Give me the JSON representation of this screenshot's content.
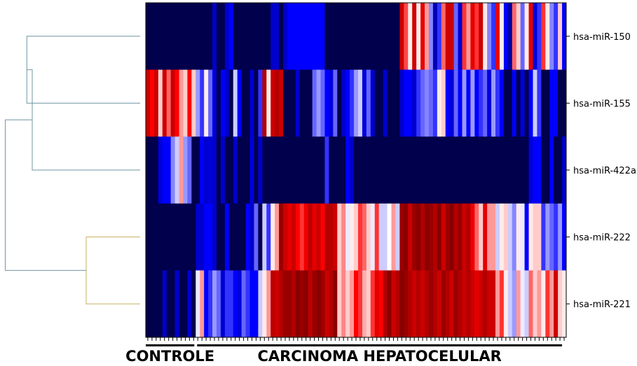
{
  "chart_data": {
    "type": "heatmap",
    "title": "",
    "colormap": "seismic",
    "colors": {
      "low": "#00004c",
      "mid_low": "#0000ff",
      "mid": "#ffffff",
      "mid_high": "#ff0000",
      "high": "#7f0000",
      "dendro_top": "#7096a6",
      "dendro_bottom": "#c8b060"
    },
    "rows": [
      "hsa-miR-150",
      "hsa-miR-155",
      "hsa-miR-422a",
      "hsa-miR-222",
      "hsa-miR-221"
    ],
    "groups": [
      {
        "label": "CONTROLE",
        "count": 12
      },
      {
        "label": "CARCINOMA HEPATOCELULAR",
        "count": 88
      }
    ],
    "values": [
      [
        0.0,
        0.0,
        0.0,
        0.0,
        0.0,
        0.0,
        0.0,
        0.0,
        0.0,
        0.0,
        0.0,
        0.0,
        0.0,
        0.0,
        0.0,
        0.0,
        0.18,
        0.0,
        0.0,
        0.18,
        0.25,
        0.0,
        0.0,
        0.0,
        0.0,
        0.0,
        0.0,
        0.0,
        0.0,
        0.0,
        0.18,
        0.18,
        0.0,
        0.18,
        0.25,
        0.25,
        0.25,
        0.25,
        0.25,
        0.25,
        0.25,
        0.25,
        0.25,
        0.0,
        0.0,
        0.0,
        0.0,
        0.0,
        0.0,
        0.0,
        0.0,
        0.0,
        0.0,
        0.0,
        0.0,
        0.0,
        0.0,
        0.0,
        0.0,
        0.0,
        0.0,
        0.85,
        0.68,
        0.52,
        0.85,
        0.52,
        0.8,
        0.6,
        0.38,
        0.15,
        0.3,
        0.65,
        0.85,
        0.85,
        0.35,
        0.18,
        0.7,
        0.6,
        0.8,
        0.7,
        0.85,
        0.52,
        0.38,
        0.3,
        0.8,
        0.52,
        0.25,
        0.12,
        0.65,
        0.55,
        0.35,
        0.52,
        0.8,
        0.2,
        0.3,
        0.7,
        0.52,
        0.38,
        0.3,
        0.55,
        0.25
      ],
      [
        0.85,
        0.75,
        0.85,
        0.55,
        0.85,
        0.65,
        0.85,
        0.75,
        0.6,
        0.55,
        0.75,
        0.55,
        0.4,
        0.3,
        0.52,
        0.35,
        0.2,
        0.0,
        0.25,
        0.18,
        0.0,
        0.45,
        0.25,
        0.0,
        0.0,
        0.18,
        0.0,
        0.3,
        0.9,
        0.52,
        0.85,
        0.9,
        0.85,
        0.0,
        0.0,
        0.0,
        0.18,
        0.0,
        0.0,
        0.0,
        0.35,
        0.4,
        0.35,
        0.25,
        0.2,
        0.35,
        0.0,
        0.18,
        0.25,
        0.3,
        0.4,
        0.45,
        0.2,
        0.35,
        0.18,
        0.0,
        0.0,
        0.18,
        0.0,
        0.0,
        0.0,
        0.18,
        0.25,
        0.25,
        0.18,
        0.3,
        0.35,
        0.38,
        0.35,
        0.3,
        0.52,
        0.55,
        0.25,
        0.2,
        0.35,
        0.25,
        0.4,
        0.25,
        0.4,
        0.25,
        0.3,
        0.35,
        0.2,
        0.4,
        0.3,
        0.25,
        0.0,
        0.0,
        0.25,
        0.0,
        0.2,
        0.0,
        0.25,
        0.45,
        0.3,
        0.0,
        0.0,
        0.25,
        0.25,
        0.0,
        0.0
      ],
      [
        0.0,
        0.0,
        0.0,
        0.2,
        0.25,
        0.25,
        0.38,
        0.45,
        0.6,
        0.4,
        0.35,
        0.0,
        0.0,
        0.25,
        0.18,
        0.2,
        0.18,
        0.0,
        0.18,
        0.0,
        0.0,
        0.18,
        0.0,
        0.0,
        0.0,
        0.2,
        0.0,
        0.18,
        0.0,
        0.0,
        0.0,
        0.0,
        0.0,
        0.0,
        0.0,
        0.0,
        0.0,
        0.0,
        0.0,
        0.0,
        0.0,
        0.0,
        0.0,
        0.3,
        0.0,
        0.0,
        0.0,
        0.0,
        0.25,
        0.18,
        0.0,
        0.0,
        0.0,
        0.0,
        0.0,
        0.0,
        0.0,
        0.0,
        0.0,
        0.0,
        0.0,
        0.0,
        0.0,
        0.0,
        0.0,
        0.0,
        0.0,
        0.0,
        0.0,
        0.0,
        0.0,
        0.0,
        0.0,
        0.0,
        0.0,
        0.0,
        0.0,
        0.0,
        0.0,
        0.0,
        0.0,
        0.0,
        0.0,
        0.0,
        0.0,
        0.0,
        0.0,
        0.0,
        0.0,
        0.0,
        0.0,
        0.0,
        0.2,
        0.25,
        0.25,
        0.0,
        0.0,
        0.25,
        0.0,
        0.0,
        0.18,
        0.2
      ],
      [
        0.0,
        0.0,
        0.0,
        0.0,
        0.0,
        0.0,
        0.0,
        0.0,
        0.0,
        0.0,
        0.0,
        0.0,
        0.18,
        0.18,
        0.25,
        0.25,
        0.18,
        0.0,
        0.0,
        0.25,
        0.0,
        0.0,
        0.0,
        0.0,
        0.25,
        0.18,
        0.35,
        0.0,
        0.45,
        0.3,
        0.52,
        0.6,
        0.95,
        0.85,
        0.8,
        0.85,
        0.75,
        0.7,
        0.78,
        0.88,
        0.8,
        0.85,
        0.75,
        0.9,
        0.88,
        0.85,
        0.55,
        0.62,
        0.48,
        0.52,
        0.55,
        0.7,
        0.65,
        0.55,
        0.48,
        0.7,
        0.45,
        0.45,
        0.5,
        0.6,
        0.45,
        0.95,
        0.98,
        0.85,
        0.95,
        0.98,
        0.9,
        0.98,
        0.95,
        0.9,
        0.98,
        0.85,
        0.95,
        0.98,
        0.9,
        0.95,
        0.85,
        0.9,
        0.78,
        0.65,
        0.55,
        0.8,
        0.6,
        0.6,
        0.45,
        0.52,
        0.55,
        0.45,
        0.38,
        0.52,
        0.48,
        0.25,
        0.52,
        0.55,
        0.55,
        0.3,
        0.4,
        0.35,
        0.3,
        0.4,
        0.25
      ],
      [
        0.0,
        0.0,
        0.0,
        0.0,
        0.18,
        0.0,
        0.0,
        0.18,
        0.0,
        0.0,
        0.18,
        0.0,
        0.48,
        0.6,
        0.25,
        0.3,
        0.4,
        0.35,
        0.18,
        0.3,
        0.3,
        0.25,
        0.2,
        0.35,
        0.3,
        0.25,
        0.25,
        0.45,
        0.52,
        0.6,
        0.88,
        0.85,
        0.9,
        0.95,
        0.95,
        0.9,
        0.98,
        0.95,
        0.98,
        0.88,
        0.95,
        0.98,
        0.95,
        0.85,
        0.9,
        0.98,
        0.55,
        0.62,
        0.55,
        0.6,
        0.75,
        0.7,
        0.58,
        0.55,
        0.7,
        0.8,
        0.75,
        0.9,
        0.98,
        0.85,
        0.9,
        0.98,
        0.95,
        0.9,
        0.85,
        0.9,
        0.85,
        0.9,
        0.95,
        0.9,
        0.85,
        0.95,
        0.9,
        0.85,
        0.95,
        0.9,
        0.85,
        0.9,
        0.85,
        0.8,
        0.85,
        0.9,
        0.85,
        0.85,
        0.6,
        0.7,
        0.52,
        0.45,
        0.4,
        0.6,
        0.48,
        0.45,
        0.65,
        0.55,
        0.6,
        0.52,
        0.7,
        0.6,
        0.85,
        0.55,
        0.52
      ]
    ],
    "row_dendrogram": {
      "order": [
        "hsa-miR-150",
        "hsa-miR-155",
        "hsa-miR-422a",
        "hsa-miR-222",
        "hsa-miR-221"
      ],
      "links": [
        {
          "a": "hsa-miR-150",
          "b": "hsa-miR-155",
          "height": 0.21
        },
        {
          "a": "cluster-150-155",
          "b": "hsa-miR-422a",
          "height": 0.2
        },
        {
          "a": "hsa-miR-222",
          "b": "hsa-miR-221",
          "height": 0.1
        },
        {
          "a": "cluster-150-155-422a",
          "b": "cluster-222-221",
          "height": 0.25
        }
      ]
    }
  }
}
